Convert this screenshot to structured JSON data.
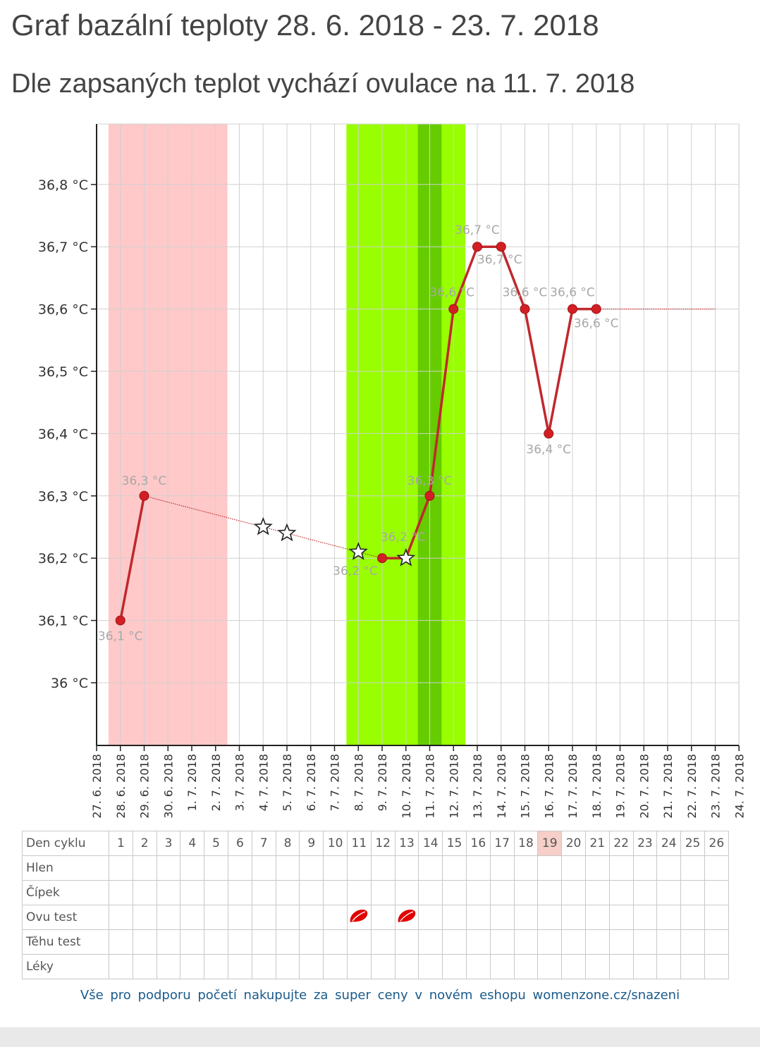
{
  "header": {
    "title": "Graf bazální teploty 28. 6. 2018 - 23. 7. 2018",
    "subtitle": "Dle zapsaných teplot vychází ovulace na 11. 7. 2018"
  },
  "chart_data": {
    "type": "line",
    "title": "Graf bazální teploty 28. 6. 2018 - 23. 7. 2018",
    "x_ticks": [
      "27. 6. 2018",
      "28. 6. 2018",
      "29. 6. 2018",
      "30. 6. 2018",
      "1. 7. 2018",
      "2. 7. 2018",
      "3. 7. 2018",
      "4. 7. 2018",
      "5. 7. 2018",
      "6. 7. 2018",
      "7. 7. 2018",
      "8. 7. 2018",
      "9. 7. 2018",
      "10. 7. 2018",
      "11. 7. 2018",
      "12. 7. 2018",
      "13. 7. 2018",
      "14. 7. 2018",
      "15. 7. 2018",
      "16. 7. 2018",
      "17. 7. 2018",
      "18. 7. 2018",
      "19. 7. 2018",
      "20. 7. 2018",
      "21. 7. 2018",
      "22. 7. 2018",
      "23. 7. 2018",
      "24. 7. 2018"
    ],
    "y_ticks": [
      {
        "value": 36.0,
        "label": "36 °C"
      },
      {
        "value": 36.1,
        "label": "36,1 °C"
      },
      {
        "value": 36.2,
        "label": "36,2 °C"
      },
      {
        "value": 36.3,
        "label": "36,3 °C"
      },
      {
        "value": 36.4,
        "label": "36,4 °C"
      },
      {
        "value": 36.5,
        "label": "36,5 °C"
      },
      {
        "value": 36.6,
        "label": "36,6 °C"
      },
      {
        "value": 36.7,
        "label": "36,7 °C"
      },
      {
        "value": 36.8,
        "label": "36,8 °C"
      }
    ],
    "ylim": [
      35.9,
      36.9
    ],
    "grid": true,
    "series": [
      {
        "color": "#c0282d",
        "points": [
          {
            "date": "28. 6. 2018",
            "value": 36.1,
            "label": "36,1 °C"
          },
          {
            "date": "29. 6. 2018",
            "value": 36.3,
            "label": "36,3 °C"
          },
          {
            "date": "9. 7. 2018",
            "value": 36.2,
            "label": "36,2 °C"
          },
          {
            "date": "11. 7. 2018",
            "value": 36.3,
            "label": "36,3 °C"
          },
          {
            "date": "12. 7. 2018",
            "value": 36.6,
            "label": "36,6 °C"
          },
          {
            "date": "13. 7. 2018",
            "value": 36.7,
            "label": "36,7 °C"
          },
          {
            "date": "14. 7. 2018",
            "value": 36.7,
            "label": "36,7 °C"
          },
          {
            "date": "15. 7. 2018",
            "value": 36.6,
            "label": "36,6 °C"
          },
          {
            "date": "16. 7. 2018",
            "value": 36.4,
            "label": "36,4 °C"
          },
          {
            "date": "17. 7. 2018",
            "value": 36.6,
            "label": "36,6 °C"
          },
          {
            "date": "18. 7. 2018",
            "value": 36.6,
            "label": "36,6 °C"
          }
        ],
        "extra_labels": [
          {
            "date": "10. 7. 2018",
            "value": 36.2,
            "label": "36,2 °C"
          }
        ],
        "dotted_segments": [
          {
            "from": "29. 6. 2018",
            "to": "9. 7. 2018"
          },
          {
            "from": "18. 7. 2018",
            "to": "23. 7. 2018",
            "value": 36.6
          }
        ],
        "star_markers": [
          {
            "date": "4. 7. 2018",
            "value": 36.25
          },
          {
            "date": "5. 7. 2018",
            "value": 36.24
          },
          {
            "date": "8. 7. 2018",
            "value": 36.21
          },
          {
            "date": "10. 7. 2018",
            "value": 36.2
          }
        ]
      }
    ],
    "bands": [
      {
        "from": "27.5. 6. 2018",
        "to": "3. 7. 2018",
        "from_date": "27. 6. 2018",
        "from_offset": 0.5,
        "to_date": "2. 7. 2018",
        "to_offset": 0.5,
        "color": "#ffc9c9",
        "meaning": "menstruation"
      },
      {
        "from_date": "7. 7. 2018",
        "from_offset": 0.5,
        "to_date": "12. 7. 2018",
        "to_offset": 0.5,
        "color": "#99ff00",
        "meaning": "fertile window"
      },
      {
        "from_date": "10. 7. 2018",
        "from_offset": 0.5,
        "to_date": "11. 7. 2018",
        "to_offset": 0.5,
        "color": "#66cc00",
        "meaning": "ovulation"
      }
    ]
  },
  "cycle_table": {
    "rows": [
      {
        "label": "Den cyklu",
        "cells": [
          "1",
          "2",
          "3",
          "4",
          "5",
          "6",
          "7",
          "8",
          "9",
          "10",
          "11",
          "12",
          "13",
          "14",
          "15",
          "16",
          "17",
          "18",
          "19",
          "20",
          "21",
          "22",
          "23",
          "24",
          "25",
          "26"
        ]
      },
      {
        "label": "Hlen"
      },
      {
        "label": "Čípek"
      },
      {
        "label": "Ovu test",
        "marks": [
          "11",
          "13"
        ]
      },
      {
        "label": "Těhu test"
      },
      {
        "label": "Léky"
      }
    ],
    "highlighted_day": "19",
    "highlight_color": "#f5cfc8",
    "ovu_mark_color": "#e00000"
  },
  "promo": {
    "text": "Vše pro podporu početí nakupujte za super ceny v novém eshopu womenzone.cz/snazeni"
  }
}
